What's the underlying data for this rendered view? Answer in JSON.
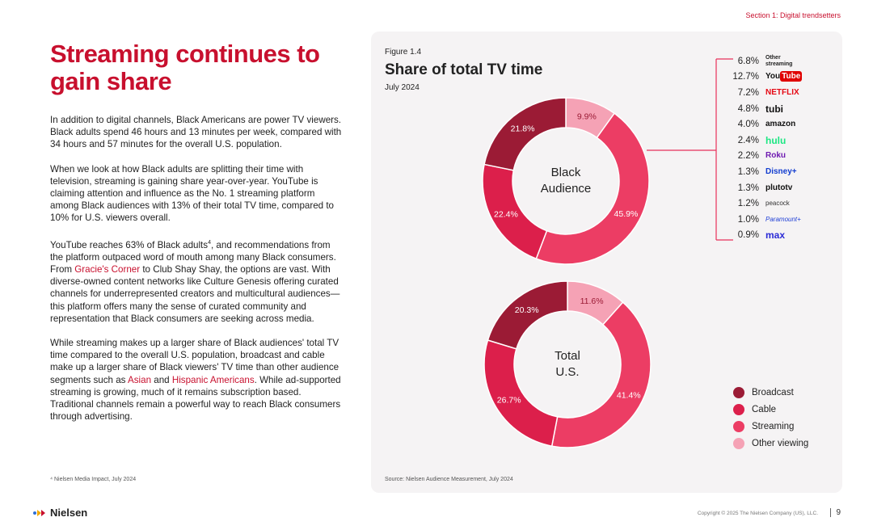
{
  "section_label": "Section 1: Digital trendsetters",
  "headline": "Streaming continues to gain share",
  "body": {
    "p1": "In addition to digital channels, Black Americans are power TV viewers. Black adults spend 46 hours and 13 minutes per week, compared with 34 hours and 57 minutes for the overall U.S. population.",
    "p2": "When we look at how Black adults are splitting their time with television, streaming is gaining share year-over-year. YouTube is claiming attention and influence as the No. 1 streaming platform among Black audiences with 13% of their total TV time, compared to 10% for U.S. viewers overall.",
    "p3_a": "YouTube reaches 63% of Black adults",
    "p3_sup": "4",
    "p3_b": ", and recommendations from the platform outpaced word of mouth among many Black consumers. From ",
    "p3_link": "Gracie's Corner",
    "p3_c": " to Club Shay Shay, the options are vast. With diverse-owned content networks like Culture Genesis offering curated channels for underrepresented creators and multicultural audiences—this platform offers many the sense of curated community and representation that Black consumers are seeking across media.",
    "p4_a": "While streaming makes up a larger share of Black audiences' total TV time compared to the overall U.S. population, broadcast and cable make up a larger share of Black viewers' TV time than other audience segments such as ",
    "p4_link1": "Asian",
    "p4_b": " and ",
    "p4_link2": "Hispanic Americans",
    "p4_c": ". While ad-supported streaming is growing, much of it remains subscription based. Traditional channels remain a powerful way to reach Black consumers through advertising."
  },
  "footnote": "⁴ Nielsen Media Impact, July 2024",
  "figure": {
    "label": "Figure 1.4",
    "title": "Share of total TV time",
    "subtitle": "July 2024",
    "source": "Source: Nielsen Audience Measurement, July 2024"
  },
  "colors": {
    "broadcast": "#9b1b35",
    "cable": "#dc1f4b",
    "streaming": "#ec3d64",
    "other": "#f5a2b5",
    "accent": "#c8102e"
  },
  "chart_data": [
    {
      "type": "pie",
      "center_label": [
        "Black",
        "Audience"
      ],
      "categories": [
        "Broadcast",
        "Cable",
        "Streaming",
        "Other viewing"
      ],
      "values": [
        21.8,
        22.4,
        45.9,
        9.9
      ],
      "value_labels": [
        "21.8%",
        "22.4%",
        "45.9%",
        "9.9%"
      ]
    },
    {
      "type": "pie",
      "center_label": [
        "Total",
        "U.S."
      ],
      "categories": [
        "Broadcast",
        "Cable",
        "Streaming",
        "Other viewing"
      ],
      "values": [
        20.3,
        26.7,
        41.4,
        11.6
      ],
      "value_labels": [
        "20.3%",
        "26.7%",
        "41.4%",
        "11.6%"
      ]
    }
  ],
  "streaming_breakdown": [
    {
      "pct": "6.8%",
      "name": "Other streaming",
      "logo_text": "Other\nstreaming",
      "color": "#222222"
    },
    {
      "pct": "12.7%",
      "name": "YouTube",
      "logo_text": "YouTube",
      "color": "#e00000"
    },
    {
      "pct": "7.2%",
      "name": "Netflix",
      "logo_text": "NETFLIX",
      "color": "#e50914"
    },
    {
      "pct": "4.8%",
      "name": "Tubi",
      "logo_text": "tubi",
      "color": "#111111"
    },
    {
      "pct": "4.0%",
      "name": "Amazon",
      "logo_text": "amazon",
      "color": "#111111"
    },
    {
      "pct": "2.4%",
      "name": "Hulu",
      "logo_text": "hulu",
      "color": "#1ce783"
    },
    {
      "pct": "2.2%",
      "name": "Roku",
      "logo_text": "Roku",
      "color": "#6f1ab1"
    },
    {
      "pct": "1.3%",
      "name": "Disney+",
      "logo_text": "Disney+",
      "color": "#113ccf"
    },
    {
      "pct": "1.3%",
      "name": "Pluto TV",
      "logo_text": "plutotv",
      "color": "#111111"
    },
    {
      "pct": "1.2%",
      "name": "Peacock",
      "logo_text": "peacock",
      "color": "#333333"
    },
    {
      "pct": "1.0%",
      "name": "Paramount+",
      "logo_text": "Paramount+",
      "color": "#1f3fd6"
    },
    {
      "pct": "0.9%",
      "name": "Max",
      "logo_text": "max",
      "color": "#2b2bd6"
    }
  ],
  "legend": [
    {
      "label": "Broadcast",
      "color": "#9b1b35"
    },
    {
      "label": "Cable",
      "color": "#dc1f4b"
    },
    {
      "label": "Streaming",
      "color": "#ec3d64"
    },
    {
      "label": "Other viewing",
      "color": "#f5a2b5"
    }
  ],
  "footer": {
    "logo_text": "Nielsen",
    "copyright": "Copyright © 2025 The Nielsen Company (US), LLC.",
    "page": "9"
  }
}
